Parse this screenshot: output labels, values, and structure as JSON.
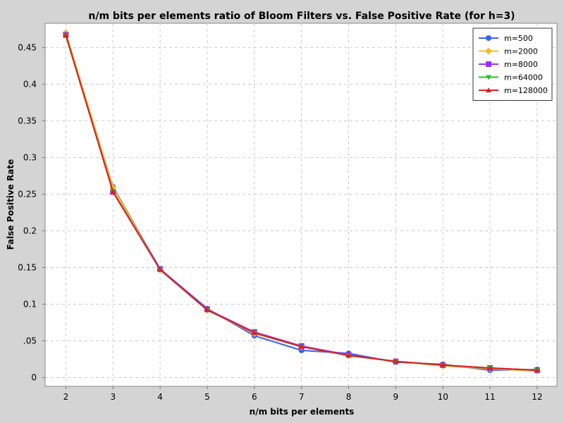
{
  "chart_data": {
    "type": "line",
    "title": "n/m bits per elements ratio of Bloom Filters vs. False Positive Rate (for h=3)",
    "xlabel": "n/m bits per elements",
    "ylabel": "False Positive Rate",
    "x": [
      2,
      3,
      4,
      5,
      6,
      7,
      8,
      9,
      10,
      11,
      12
    ],
    "xlim": [
      1.56,
      12.42
    ],
    "ylim": [
      -0.012,
      0.483
    ],
    "x_ticks": [
      "2",
      "3",
      "4",
      "5",
      "6",
      "7",
      "8",
      "9",
      "10",
      "11",
      "12"
    ],
    "y_ticks": [
      {
        "v": 0,
        "label": "0"
      },
      {
        "v": 0.05,
        "label": ".05"
      },
      {
        "v": 0.1,
        "label": "0.1"
      },
      {
        "v": 0.15,
        "label": "0.15"
      },
      {
        "v": 0.2,
        "label": "0.2"
      },
      {
        "v": 0.25,
        "label": "0.25"
      },
      {
        "v": 0.3,
        "label": "0.3"
      },
      {
        "v": 0.35,
        "label": "0.35"
      },
      {
        "v": 0.4,
        "label": "0.4"
      },
      {
        "v": 0.45,
        "label": "0.45"
      }
    ],
    "grid": true,
    "legend_position": "top-right",
    "series": [
      {
        "name": "m=500",
        "color": "#3a62f0",
        "marker": "circle",
        "values": [
          0.468,
          0.26,
          0.148,
          0.094,
          0.057,
          0.037,
          0.033,
          0.021,
          0.018,
          0.01,
          0.011
        ]
      },
      {
        "name": "m=2000",
        "color": "#f5b829",
        "marker": "diamond",
        "values": [
          0.47,
          0.259,
          0.147,
          0.092,
          0.06,
          0.042,
          0.03,
          0.022,
          0.016,
          0.012,
          0.009
        ]
      },
      {
        "name": "m=8000",
        "color": "#9b30f0",
        "marker": "square",
        "values": [
          0.467,
          0.253,
          0.148,
          0.093,
          0.062,
          0.043,
          0.031,
          0.022,
          0.017,
          0.013,
          0.01
        ]
      },
      {
        "name": "m=64000",
        "color": "#25c425",
        "marker": "triangle-down",
        "values": [
          0.466,
          0.254,
          0.147,
          0.092,
          0.061,
          0.042,
          0.03,
          0.022,
          0.017,
          0.013,
          0.01
        ]
      },
      {
        "name": "m=128000",
        "color": "#e02020",
        "marker": "triangle-up",
        "values": [
          0.467,
          0.253,
          0.147,
          0.092,
          0.061,
          0.042,
          0.03,
          0.022,
          0.017,
          0.013,
          0.01
        ]
      }
    ]
  }
}
